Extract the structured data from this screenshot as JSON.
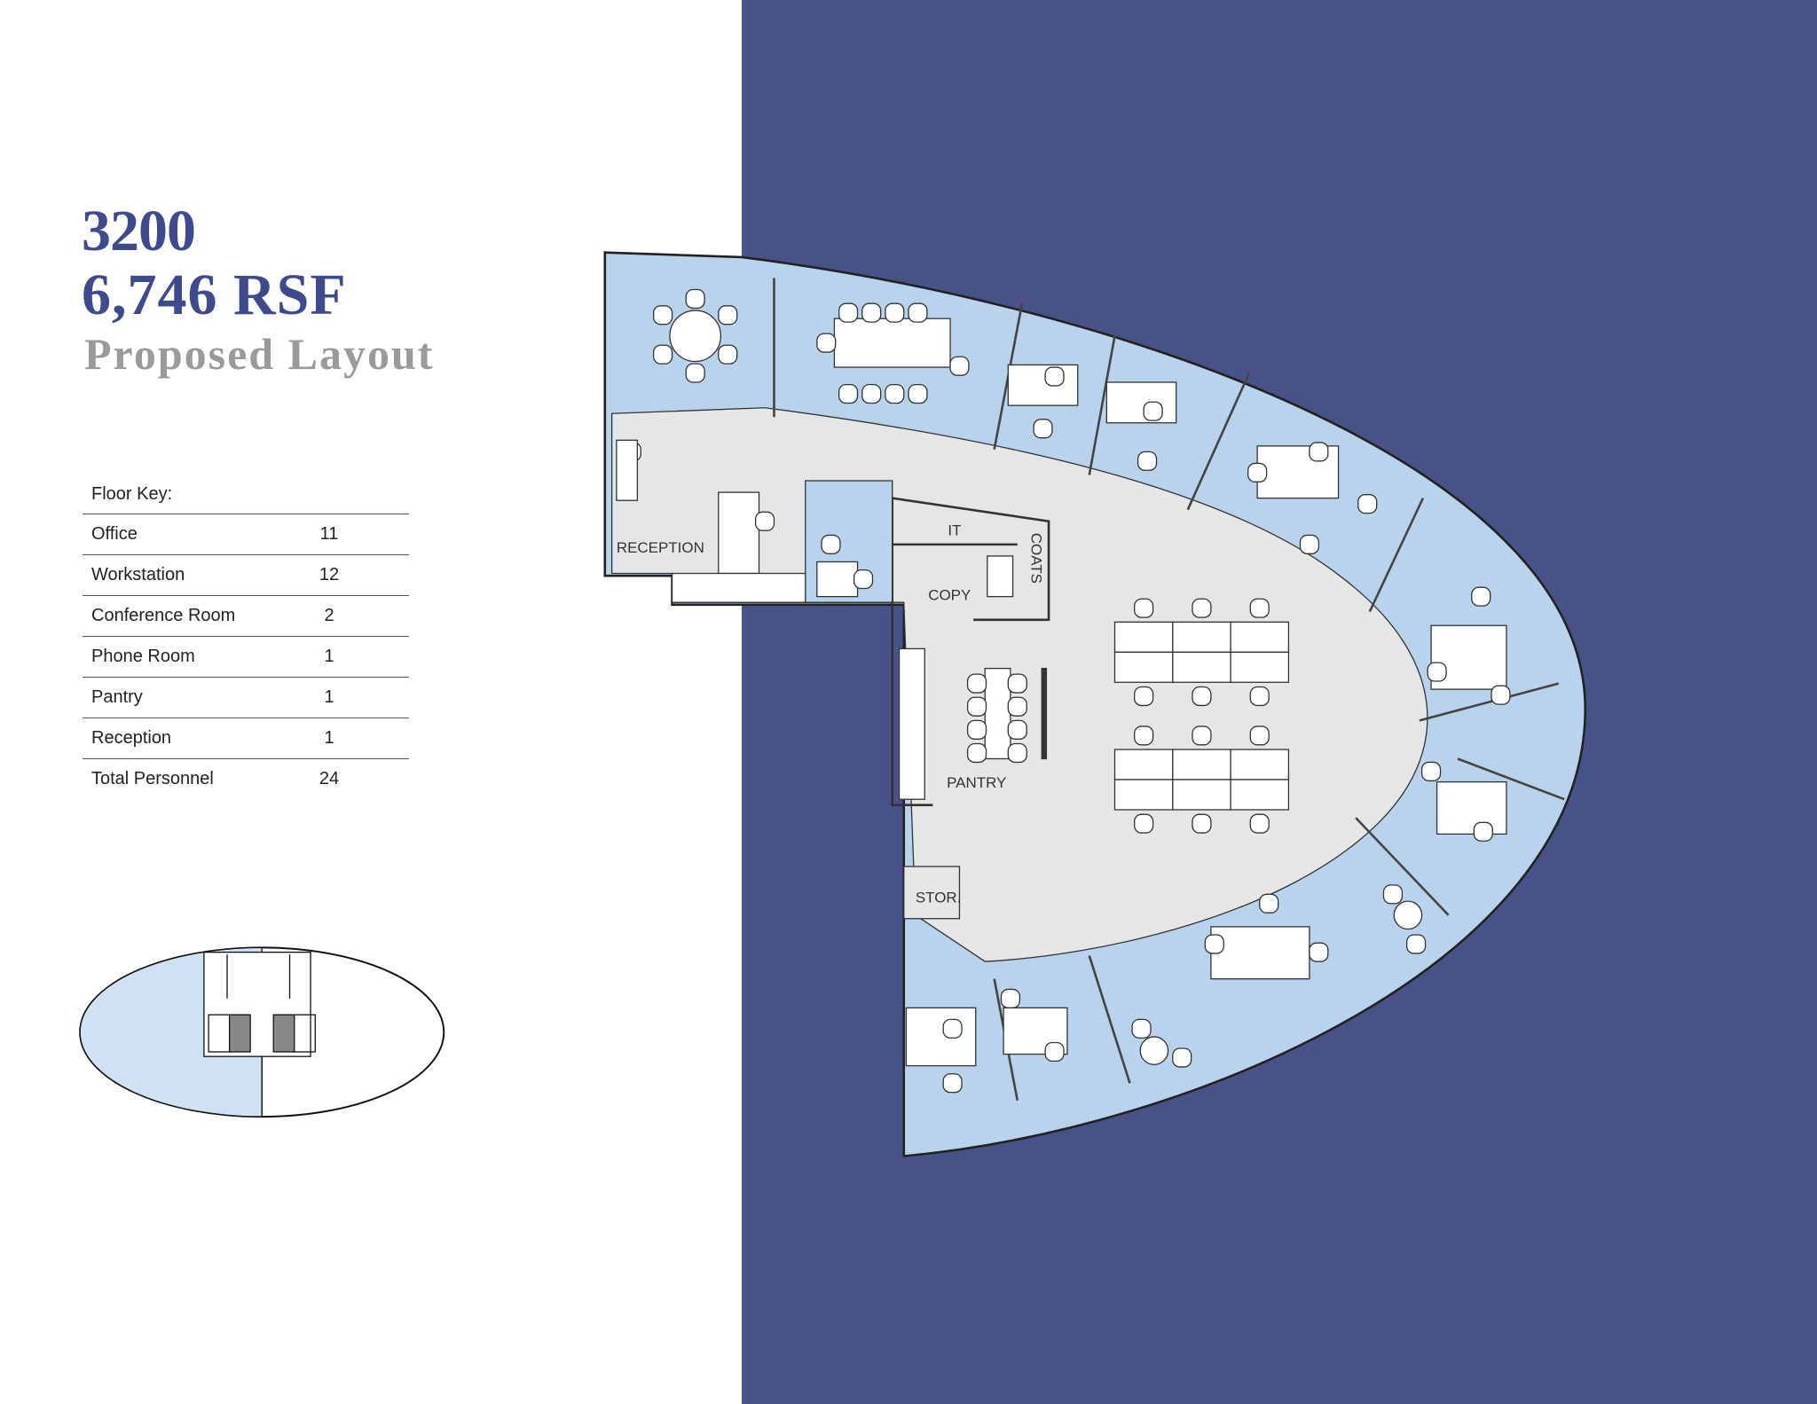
{
  "header": {
    "suite": "3200",
    "area": "6,746 RSF",
    "subtitle": "Proposed Layout"
  },
  "floor_key": {
    "title": "Floor Key:",
    "rows": [
      {
        "label": "Office",
        "value": "11"
      },
      {
        "label": "Workstation",
        "value": "12"
      },
      {
        "label": "Conference Room",
        "value": "2"
      },
      {
        "label": "Phone Room",
        "value": "1"
      },
      {
        "label": "Pantry",
        "value": "1"
      },
      {
        "label": "Reception",
        "value": "1"
      },
      {
        "label": "Total Personnel",
        "value": "24"
      }
    ]
  },
  "plan": {
    "labels": {
      "reception": "RECEPTION",
      "it": "IT",
      "coats": "COATS",
      "copy": "COPY",
      "pantry": "PANTRY",
      "storage": "STOR."
    }
  },
  "colors": {
    "panel": "#485286",
    "title": "#3d4a8c",
    "subtitle": "#9a9a9a",
    "office_fill": "#b9d3ec",
    "corridor_fill": "#e6e6e6"
  }
}
